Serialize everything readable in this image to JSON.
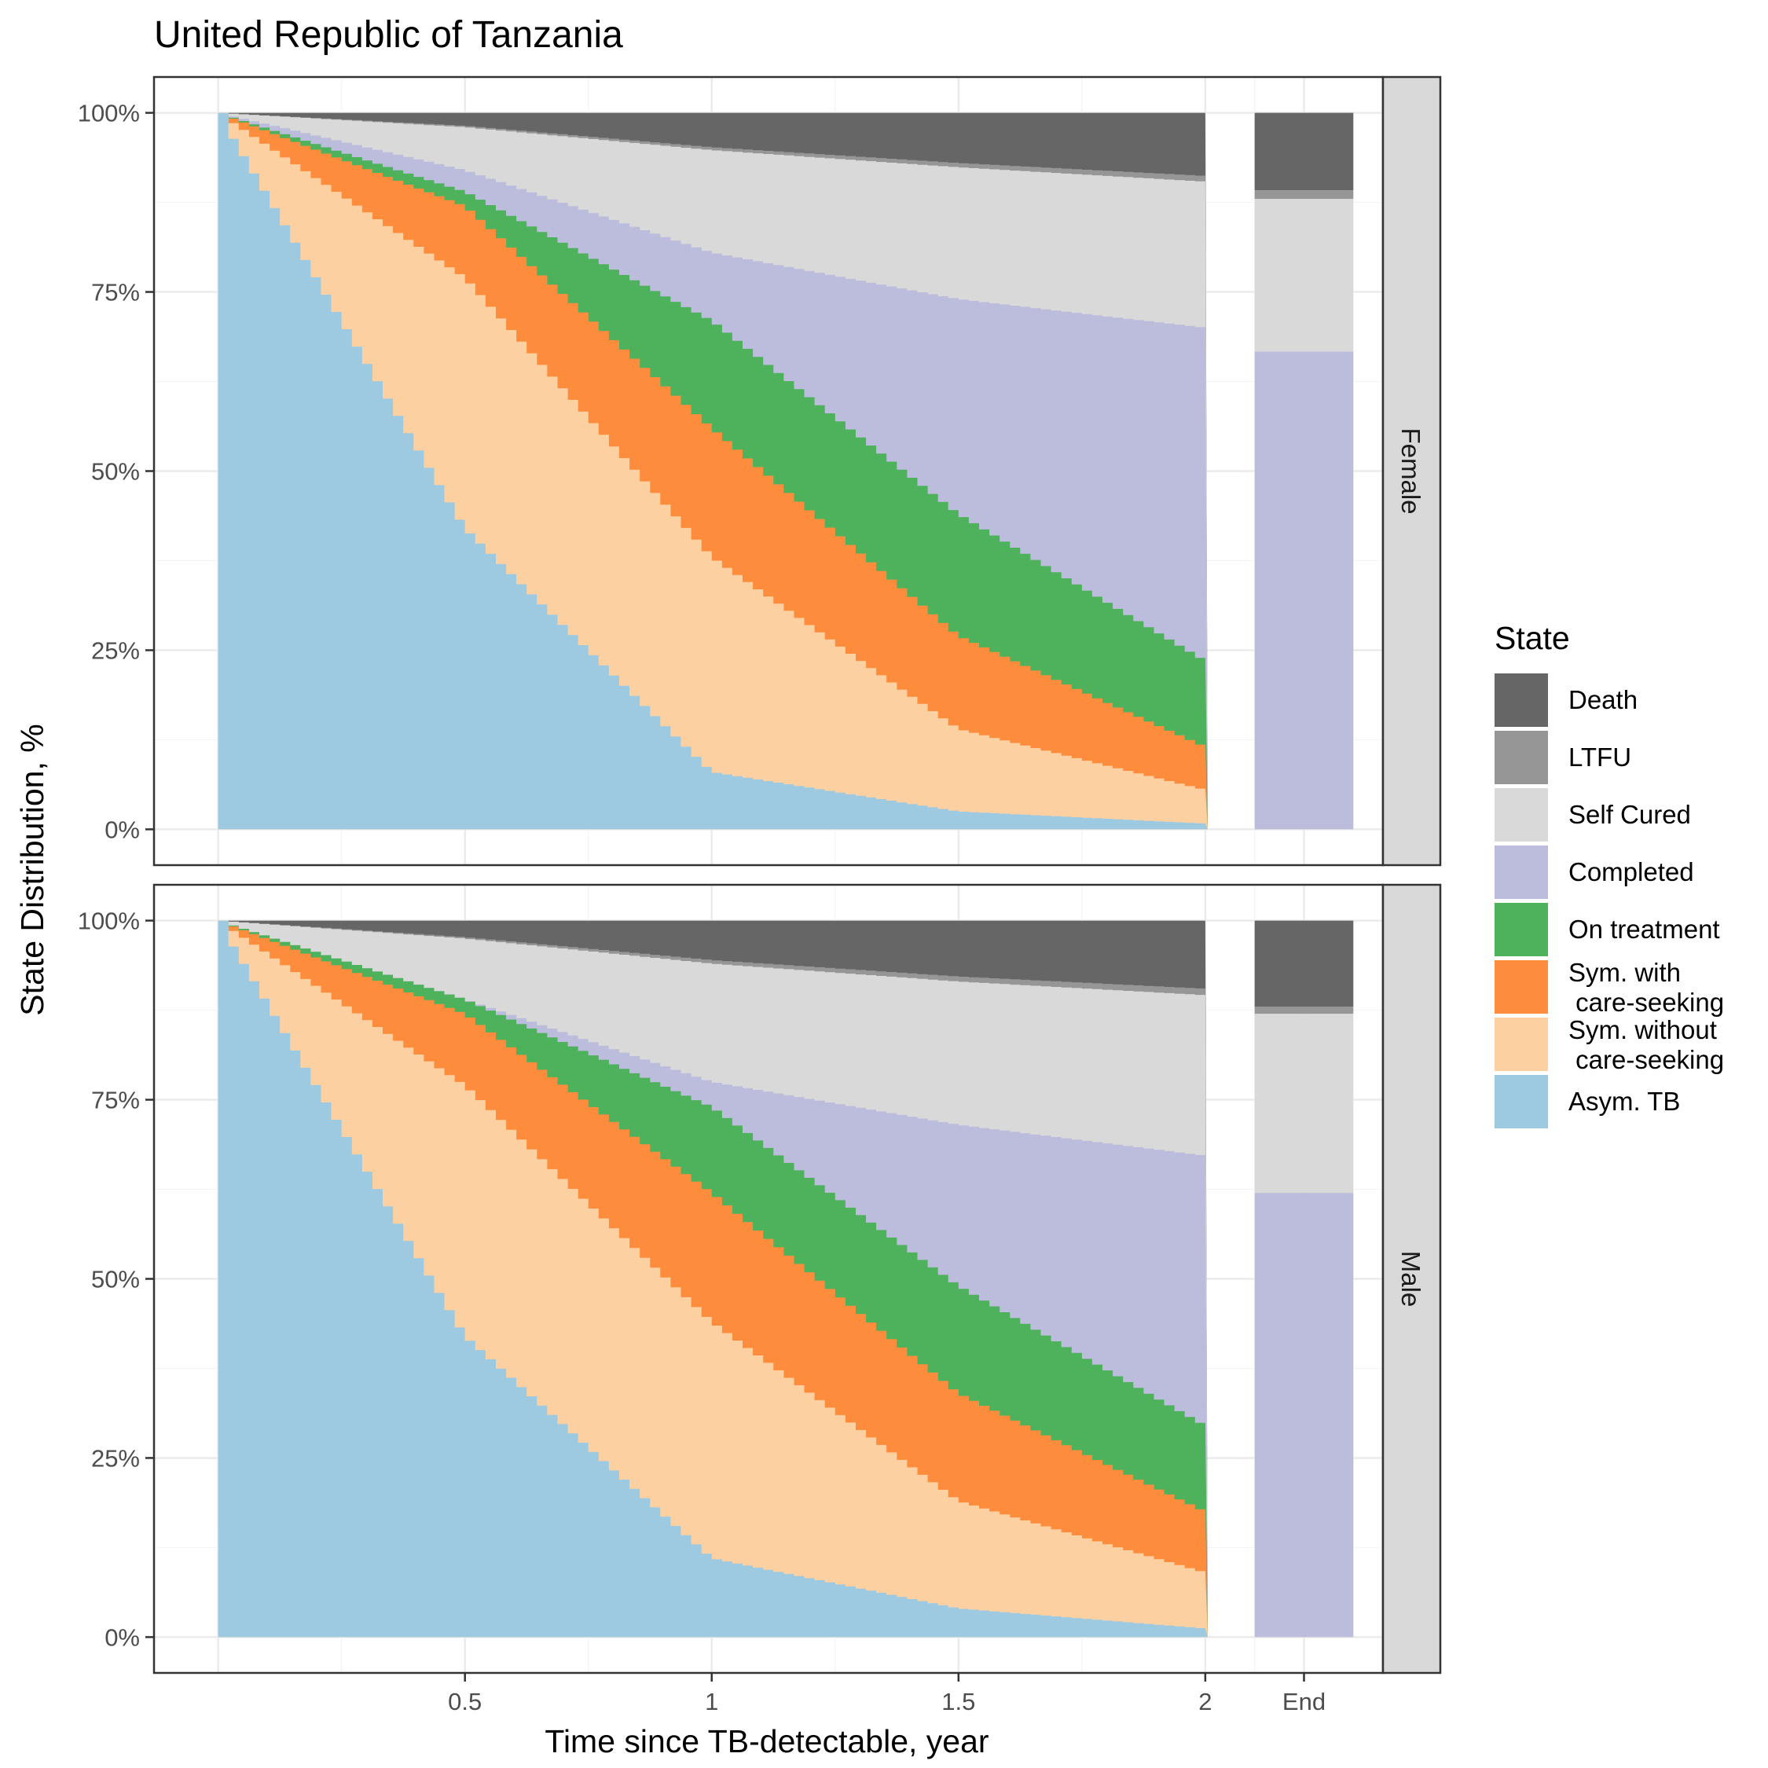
{
  "chart_data": {
    "type": "area",
    "title": "United Republic of Tanzania",
    "xlabel": "Time since TB-detectable, year",
    "ylabel": "State Distribution, %",
    "xlim": [
      -0.13,
      2.36
    ],
    "ylim": [
      -0.05,
      1.05
    ],
    "x_ticks": [
      {
        "value": 0.5,
        "label": "0.5"
      },
      {
        "value": 1.0,
        "label": "1"
      },
      {
        "value": 1.5,
        "label": "1.5"
      },
      {
        "value": 2.0,
        "label": "2"
      },
      {
        "value": 2.2,
        "label": "End"
      }
    ],
    "y_ticks": [
      {
        "value": 0,
        "label": "0%"
      },
      {
        "value": 0.25,
        "label": "25%"
      },
      {
        "value": 0.5,
        "label": "50%"
      },
      {
        "value": 0.75,
        "label": "75%"
      },
      {
        "value": 1.0,
        "label": "100%"
      }
    ],
    "legend": {
      "title": "State",
      "position": "right",
      "items": [
        {
          "label": "Death",
          "color": "#666666"
        },
        {
          "label": "LTFU",
          "color": "#969696"
        },
        {
          "label": "Self Cured",
          "color": "#D9D9D9"
        },
        {
          "label": "Completed",
          "color": "#BCBDDC"
        },
        {
          "label": "On treatment",
          "color": "#4DB25B"
        },
        {
          "label": "Sym. with\n care-seeking",
          "color": "#FD8D3C"
        },
        {
          "label": "Sym. without\n care-seeking",
          "color": "#FDD0A2"
        },
        {
          "label": "Asym. TB",
          "color": "#9ECAE1"
        }
      ]
    },
    "stack_order_bottom_to_top": [
      "Asym. TB",
      "Sym. without\n care-seeking",
      "Sym. with\n care-seeking",
      "On treatment",
      "Completed",
      "Self Cured",
      "LTFU",
      "Death"
    ],
    "series_x": [
      0,
      0.5,
      1.0,
      1.5,
      2.0
    ],
    "end_x": 2.2,
    "panels": [
      {
        "strip": "Female",
        "cumulative_tops": [
          [
            1.0,
            0.42,
            0.08,
            0.025,
            0.008
          ],
          [
            1.0,
            0.77,
            0.38,
            0.14,
            0.055
          ],
          [
            1.0,
            0.87,
            0.56,
            0.27,
            0.115
          ],
          [
            1.0,
            0.89,
            0.71,
            0.44,
            0.235
          ],
          [
            1.0,
            0.92,
            0.805,
            0.74,
            0.7
          ],
          [
            1.0,
            0.98,
            0.948,
            0.924,
            0.904
          ],
          [
            1.0,
            0.982,
            0.952,
            0.93,
            0.912
          ],
          [
            1.0,
            1.0,
            1.0,
            1.0,
            1.0
          ]
        ],
        "end_bar": {
          "Asym. TB": 0,
          "Sym. without\n care-seeking": 0,
          "Sym. with\n care-seeking": 0,
          "On treatment": 0,
          "Completed": 0.667,
          "Self Cured": 0.213,
          "LTFU": 0.012,
          "Death": 0.108
        }
      },
      {
        "strip": "Male",
        "cumulative_tops": [
          [
            1.0,
            0.42,
            0.11,
            0.04,
            0.012
          ],
          [
            1.0,
            0.77,
            0.44,
            0.19,
            0.09
          ],
          [
            1.0,
            0.87,
            0.62,
            0.34,
            0.175
          ],
          [
            1.0,
            0.89,
            0.74,
            0.49,
            0.295
          ],
          [
            1.0,
            0.89,
            0.775,
            0.715,
            0.672
          ],
          [
            1.0,
            0.975,
            0.94,
            0.915,
            0.896
          ],
          [
            1.0,
            0.977,
            0.945,
            0.922,
            0.905
          ],
          [
            1.0,
            1.0,
            1.0,
            1.0,
            1.0
          ]
        ],
        "end_bar": {
          "Asym. TB": 0,
          "Sym. without\n care-seeking": 0,
          "Sym. with\n care-seeking": 0,
          "On treatment": 0,
          "Completed": 0.62,
          "Self Cured": 0.25,
          "LTFU": 0.01,
          "Death": 0.12
        }
      }
    ]
  }
}
